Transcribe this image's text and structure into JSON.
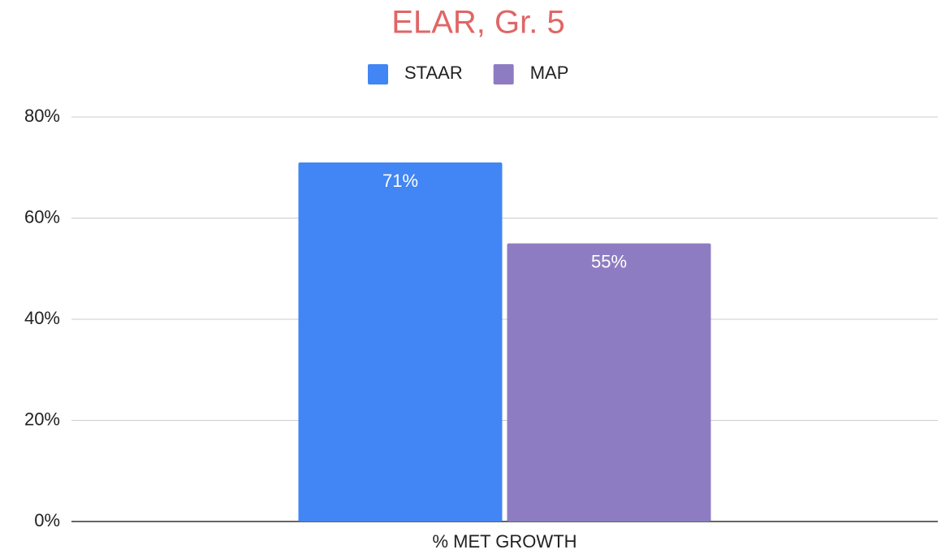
{
  "chart_data": {
    "type": "bar",
    "title": "ELAR, Gr. 5",
    "categories": [
      "% MET GROWTH"
    ],
    "series": [
      {
        "name": "STAAR",
        "color": "#4285f4",
        "values": [
          71
        ],
        "value_labels": [
          "71%"
        ]
      },
      {
        "name": "MAP",
        "color": "#8e7cc3",
        "values": [
          55
        ],
        "value_labels": [
          "55%"
        ]
      }
    ],
    "ylim": [
      0,
      80
    ],
    "yticks": [
      {
        "value": 0,
        "label": "0%"
      },
      {
        "value": 20,
        "label": "20%"
      },
      {
        "value": 40,
        "label": "40%"
      },
      {
        "value": 60,
        "label": "60%"
      },
      {
        "value": 80,
        "label": "80%"
      }
    ],
    "grid": true,
    "legend": "top"
  }
}
